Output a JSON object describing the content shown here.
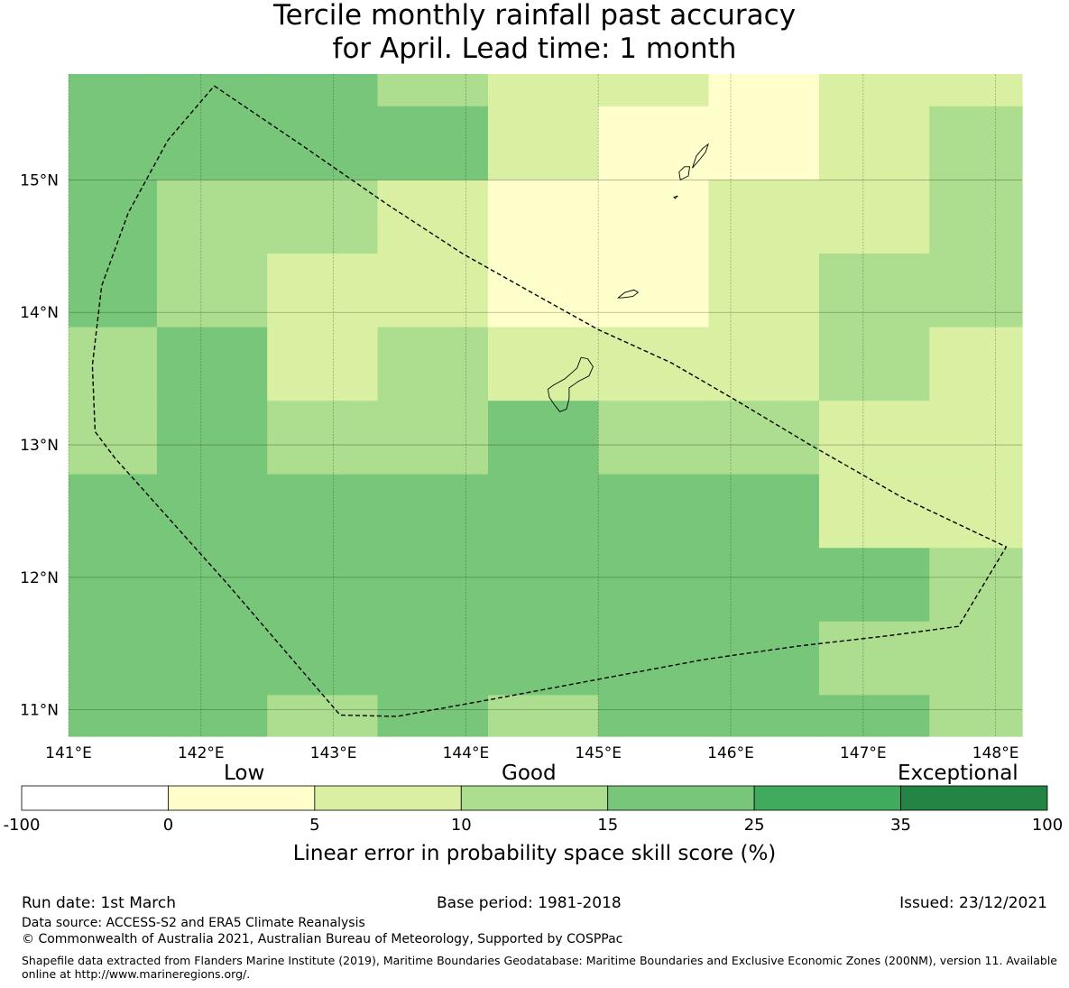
{
  "title": {
    "line1": "Tercile monthly rainfall past accuracy",
    "line2": "for April. Lead time: 1 month"
  },
  "map": {
    "type": "gridded-skill-map",
    "lon_range": [
      141.0,
      148.2
    ],
    "lat_range": [
      10.8,
      15.8
    ],
    "lon_ticks": [
      141,
      142,
      143,
      144,
      145,
      146,
      147,
      148
    ],
    "lat_ticks": [
      11,
      12,
      13,
      14,
      15
    ],
    "lon_labels": [
      "141°E",
      "142°E",
      "143°E",
      "144°E",
      "145°E",
      "146°E",
      "147°E",
      "148°E"
    ],
    "lat_labels": [
      "11°N",
      "12°N",
      "13°N",
      "14°N",
      "15°N"
    ],
    "grid_lines": true,
    "cell_lon_edges": [
      141.0,
      141.667,
      142.5,
      143.333,
      144.167,
      145.0,
      145.833,
      146.667,
      147.5,
      148.2
    ],
    "cell_lat_edges": [
      15.8,
      15.556,
      15.0,
      14.444,
      13.889,
      13.333,
      12.778,
      12.222,
      11.667,
      11.111,
      10.8
    ],
    "cell_class_rows": [
      [
        4,
        4,
        4,
        3,
        2,
        2,
        1,
        2,
        2
      ],
      [
        4,
        4,
        4,
        4,
        2,
        1,
        1,
        2,
        3
      ],
      [
        4,
        3,
        3,
        2,
        1,
        1,
        2,
        2,
        3
      ],
      [
        4,
        3,
        2,
        2,
        1,
        1,
        2,
        3,
        3
      ],
      [
        3,
        4,
        2,
        3,
        2,
        2,
        2,
        3,
        2
      ],
      [
        3,
        4,
        3,
        3,
        4,
        3,
        3,
        2,
        2
      ],
      [
        4,
        4,
        4,
        4,
        4,
        4,
        4,
        2,
        2
      ],
      [
        4,
        4,
        4,
        4,
        4,
        4,
        4,
        4,
        3
      ],
      [
        4,
        4,
        4,
        4,
        4,
        4,
        4,
        3,
        3
      ],
      [
        4,
        4,
        3,
        4,
        3,
        4,
        4,
        4,
        3
      ]
    ],
    "boundary": [
      [
        142.1,
        15.71
      ],
      [
        142.75,
        15.27
      ],
      [
        143.4,
        14.82
      ],
      [
        143.98,
        14.44
      ],
      [
        144.55,
        14.12
      ],
      [
        145.0,
        13.87
      ],
      [
        145.55,
        13.62
      ],
      [
        146.05,
        13.33
      ],
      [
        146.6,
        13.0
      ],
      [
        147.3,
        12.6
      ],
      [
        148.08,
        12.23
      ],
      [
        147.72,
        11.63
      ],
      [
        147.2,
        11.56
      ],
      [
        146.5,
        11.48
      ],
      [
        145.8,
        11.38
      ],
      [
        145.0,
        11.23
      ],
      [
        144.2,
        11.08
      ],
      [
        143.48,
        10.95
      ],
      [
        143.05,
        10.96
      ],
      [
        142.2,
        11.95
      ],
      [
        141.35,
        12.9
      ],
      [
        141.2,
        13.1
      ],
      [
        141.18,
        13.6
      ],
      [
        141.25,
        14.2
      ],
      [
        141.45,
        14.75
      ],
      [
        141.75,
        15.3
      ],
      [
        142.1,
        15.71
      ]
    ],
    "boundary_color": "#000000",
    "islands": [
      [
        [
          144.96,
          13.59
        ],
        [
          144.92,
          13.65
        ],
        [
          144.87,
          13.66
        ],
        [
          144.84,
          13.58
        ],
        [
          144.75,
          13.5
        ],
        [
          144.66,
          13.45
        ],
        [
          144.62,
          13.42
        ],
        [
          144.63,
          13.36
        ],
        [
          144.67,
          13.3
        ],
        [
          144.71,
          13.25
        ],
        [
          144.76,
          13.27
        ],
        [
          144.78,
          13.35
        ],
        [
          144.78,
          13.43
        ],
        [
          144.85,
          13.48
        ],
        [
          144.93,
          13.52
        ],
        [
          144.96,
          13.59
        ]
      ],
      [
        [
          145.15,
          14.11
        ],
        [
          145.2,
          14.15
        ],
        [
          145.27,
          14.17
        ],
        [
          145.3,
          14.15
        ],
        [
          145.26,
          14.12
        ],
        [
          145.18,
          14.11
        ],
        [
          145.15,
          14.11
        ]
      ],
      [
        [
          145.62,
          15.0
        ],
        [
          145.68,
          15.03
        ],
        [
          145.69,
          15.1
        ],
        [
          145.65,
          15.1
        ],
        [
          145.61,
          15.06
        ],
        [
          145.62,
          15.0
        ]
      ],
      [
        [
          145.57,
          14.87
        ],
        [
          145.6,
          14.88
        ],
        [
          145.58,
          14.86
        ],
        [
          145.57,
          14.87
        ]
      ],
      [
        [
          145.71,
          15.09
        ],
        [
          145.74,
          15.18
        ],
        [
          145.79,
          15.24
        ],
        [
          145.83,
          15.27
        ],
        [
          145.81,
          15.21
        ],
        [
          145.77,
          15.16
        ],
        [
          145.71,
          15.09
        ]
      ]
    ]
  },
  "colorbar": {
    "classes": [
      "-100 to 0",
      "0 to 5",
      "5 to 10",
      "10 to 15",
      "15 to 25",
      "25 to 35",
      "35 to 100"
    ],
    "colors": [
      "#ffffff",
      "#ffffcc",
      "#d9f0a3",
      "#addd8e",
      "#78c679",
      "#41ab5d",
      "#238443"
    ],
    "tick_labels": [
      "-100",
      "0",
      "5",
      "10",
      "15",
      "25",
      "35",
      "100"
    ],
    "category_words": {
      "low": "Low",
      "good": "Good",
      "exceptional": "Exceptional"
    },
    "caption": "Linear error in probability space skill score (%)"
  },
  "footer": {
    "run_date": "Run date: 1st March",
    "base_period": "Base period: 1981-2018",
    "issued": "Issued: 23/12/2021",
    "data_source": "Data source: ACCESS-S2 and ERA5 Climate Reanalysis",
    "copyright": "© Commonwealth of Australia 2021, Australian Bureau of Meteorology, Supported by COSPPac",
    "shapefile_note": "Shapefile data extracted from Flanders Marine Institute (2019), Maritime Boundaries Geodatabase: Maritime Boundaries and Exclusive Economic Zones (200NM), version 11. Available online at http://www.marineregions.org/."
  }
}
